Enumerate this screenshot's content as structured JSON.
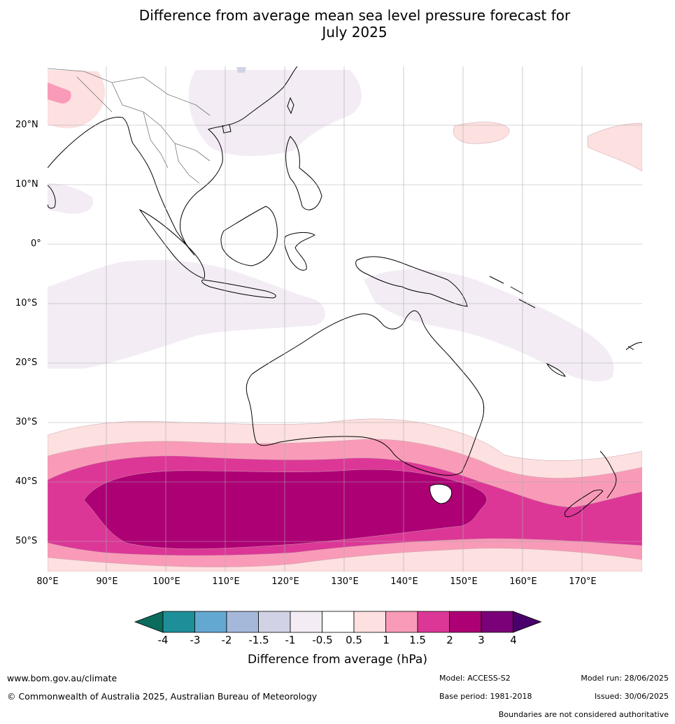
{
  "title_line1": "Difference from average mean sea level pressure forecast for",
  "title_line2": "July 2025",
  "lat_labels": [
    "20°N",
    "10°N",
    "0°",
    "10°S",
    "20°S",
    "30°S",
    "40°S",
    "50°S"
  ],
  "lon_labels": [
    "80°E",
    "90°E",
    "100°E",
    "110°E",
    "120°E",
    "130°E",
    "140°E",
    "150°E",
    "160°E",
    "170°E"
  ],
  "colorbar": {
    "title": "Difference from average (hPa)",
    "tick_labels": [
      "-4",
      "-3",
      "-2",
      "-1.5",
      "-1",
      "-0.5",
      "0.5",
      "1",
      "1.5",
      "2",
      "3",
      "4"
    ],
    "colors": [
      "#0b6b5d",
      "#1e8f99",
      "#63a8d1",
      "#a6b8da",
      "#d2d2e6",
      "#f3ecf5",
      "#ffffff",
      "#fde0e0",
      "#f99bb8",
      "#dc3797",
      "#ad0075",
      "#7a0177",
      "#4a006a"
    ]
  },
  "footer": {
    "website": "www.bom.gov.au/climate",
    "copyright": "© Commonwealth of Australia 2025, Australian Bureau of Meteorology",
    "model": "Model: ACCESS-S2",
    "base_period": "Base period: 1981-2018",
    "model_run": "Model run: 28/06/2025",
    "issued": "Issued: 30/06/2025",
    "disclaimer": "Boundaries are not considered authoritative"
  }
}
